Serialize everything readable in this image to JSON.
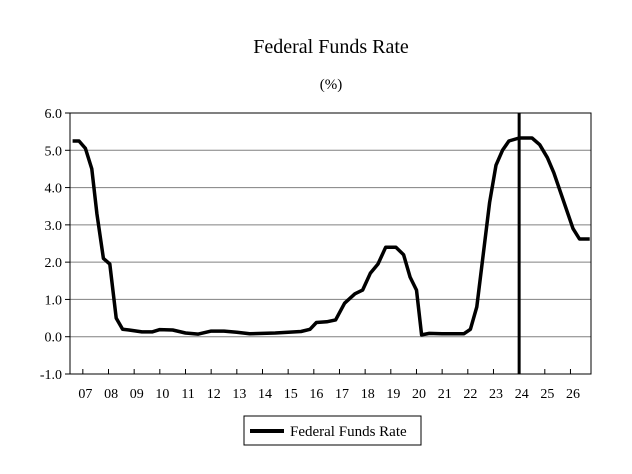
{
  "chart_data": {
    "type": "line",
    "title": "Federal Funds Rate",
    "subtitle": "(%)",
    "xlabel": "",
    "ylabel": "",
    "ylim": [
      -1.0,
      6.0
    ],
    "xlim": [
      2006.5,
      2026.8
    ],
    "y_ticks": [
      "6.0",
      "5.0",
      "4.0",
      "3.0",
      "2.0",
      "1.0",
      "0.0",
      "-1.0"
    ],
    "y_tick_values": [
      6,
      5,
      4,
      3,
      2,
      1,
      0,
      -1
    ],
    "x_ticks": [
      "07",
      "08",
      "09",
      "10",
      "11",
      "12",
      "13",
      "14",
      "15",
      "16",
      "17",
      "18",
      "19",
      "20",
      "21",
      "22",
      "23",
      "24",
      "25",
      "26"
    ],
    "grid": true,
    "legend": "bottom-center",
    "vertical_line_x": 2024.0,
    "series": [
      {
        "name": "Federal Funds Rate",
        "color": "#000000",
        "points": [
          [
            2006.6,
            5.25
          ],
          [
            2006.85,
            5.25
          ],
          [
            2007.1,
            5.05
          ],
          [
            2007.35,
            4.5
          ],
          [
            2007.55,
            3.3
          ],
          [
            2007.8,
            2.1
          ],
          [
            2008.05,
            1.95
          ],
          [
            2008.3,
            0.5
          ],
          [
            2008.55,
            0.2
          ],
          [
            2008.8,
            0.18
          ],
          [
            2009.3,
            0.13
          ],
          [
            2009.7,
            0.13
          ],
          [
            2010.0,
            0.19
          ],
          [
            2010.5,
            0.18
          ],
          [
            2011.0,
            0.1
          ],
          [
            2011.5,
            0.07
          ],
          [
            2012.0,
            0.15
          ],
          [
            2012.5,
            0.15
          ],
          [
            2013.0,
            0.12
          ],
          [
            2013.5,
            0.08
          ],
          [
            2014.0,
            0.09
          ],
          [
            2014.5,
            0.1
          ],
          [
            2015.0,
            0.12
          ],
          [
            2015.5,
            0.14
          ],
          [
            2015.85,
            0.2
          ],
          [
            2016.1,
            0.38
          ],
          [
            2016.5,
            0.4
          ],
          [
            2016.85,
            0.45
          ],
          [
            2017.2,
            0.9
          ],
          [
            2017.6,
            1.15
          ],
          [
            2017.9,
            1.25
          ],
          [
            2018.2,
            1.7
          ],
          [
            2018.5,
            1.95
          ],
          [
            2018.8,
            2.4
          ],
          [
            2019.2,
            2.4
          ],
          [
            2019.5,
            2.2
          ],
          [
            2019.75,
            1.6
          ],
          [
            2020.0,
            1.25
          ],
          [
            2020.2,
            0.05
          ],
          [
            2020.5,
            0.09
          ],
          [
            2021.0,
            0.08
          ],
          [
            2021.5,
            0.08
          ],
          [
            2021.85,
            0.08
          ],
          [
            2022.1,
            0.2
          ],
          [
            2022.35,
            0.8
          ],
          [
            2022.6,
            2.2
          ],
          [
            2022.85,
            3.6
          ],
          [
            2023.1,
            4.6
          ],
          [
            2023.35,
            5.0
          ],
          [
            2023.6,
            5.25
          ],
          [
            2024.0,
            5.33
          ],
          [
            2024.5,
            5.33
          ],
          [
            2024.8,
            5.15
          ],
          [
            2025.1,
            4.8
          ],
          [
            2025.35,
            4.4
          ],
          [
            2025.6,
            3.9
          ],
          [
            2025.85,
            3.4
          ],
          [
            2026.1,
            2.9
          ],
          [
            2026.35,
            2.62
          ],
          [
            2026.75,
            2.62
          ]
        ]
      }
    ]
  }
}
